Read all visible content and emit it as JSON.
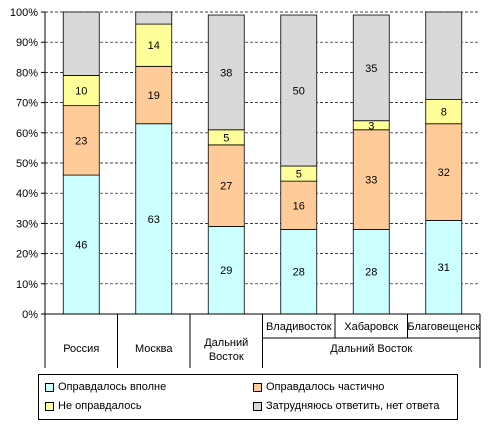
{
  "chart_data": {
    "type": "bar",
    "stacked": true,
    "percent_axis": true,
    "y_ticks": [
      "0%",
      "10%",
      "20%",
      "30%",
      "40%",
      "50%",
      "60%",
      "70%",
      "80%",
      "90%",
      "100%"
    ],
    "ylim": [
      0,
      100
    ],
    "grid": "dashed horizontal",
    "categories": [
      "Россия",
      "Москва",
      "Дальний Восток",
      "Владивосток",
      "Хабаровск",
      "Благовещенск"
    ],
    "group_label": "Дальний Восток",
    "series": [
      {
        "name": "Оправдалось вполне",
        "values": [
          46,
          63,
          29,
          28,
          28,
          31
        ],
        "color": "#ccffff"
      },
      {
        "name": "Оправдалось частично",
        "values": [
          23,
          19,
          27,
          16,
          33,
          32
        ],
        "color": "#ffcc99"
      },
      {
        "name": "Не оправдалось",
        "values": [
          10,
          14,
          5,
          5,
          3,
          8
        ],
        "color": "#ffff99"
      },
      {
        "name": "Затрудняюсь ответить, нет ответа",
        "values": [
          21,
          4,
          38,
          50,
          35,
          29
        ],
        "color": "#d9d9d9"
      }
    ],
    "data_labels": [
      [
        "46",
        "63",
        "29",
        "28",
        "28",
        "31"
      ],
      [
        "23",
        "19",
        "27",
        "16",
        "33",
        "32"
      ],
      [
        "10",
        "14",
        "5",
        "5",
        "3",
        "8"
      ],
      [
        "",
        "",
        "38",
        "50",
        "35",
        ""
      ]
    ],
    "legend_position": "bottom"
  }
}
